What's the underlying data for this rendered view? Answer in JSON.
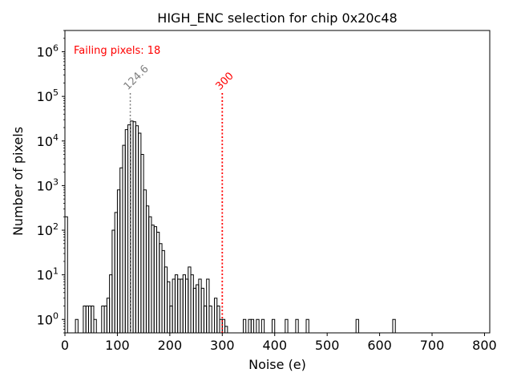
{
  "chart_data": {
    "type": "histogram",
    "title": "HIGH_ENC selection for chip 0x20c48",
    "xlabel": "Noise (e)",
    "ylabel": "Number of pixels",
    "xlim": [
      0,
      810
    ],
    "ylim": [
      0.5,
      3000000
    ],
    "yscale": "log",
    "x_ticks": [
      {
        "value": 0,
        "label": "0"
      },
      {
        "value": 100,
        "label": "100"
      },
      {
        "value": 200,
        "label": "200"
      },
      {
        "value": 300,
        "label": "300"
      },
      {
        "value": 400,
        "label": "400"
      },
      {
        "value": 500,
        "label": "500"
      },
      {
        "value": 600,
        "label": "600"
      },
      {
        "value": 700,
        "label": "700"
      },
      {
        "value": 800,
        "label": "800"
      }
    ],
    "y_ticks": [
      {
        "value": 1,
        "base": "10",
        "exp": "0"
      },
      {
        "value": 10,
        "base": "10",
        "exp": "1"
      },
      {
        "value": 100,
        "base": "10",
        "exp": "2"
      },
      {
        "value": 1000,
        "base": "10",
        "exp": "3"
      },
      {
        "value": 10000,
        "base": "10",
        "exp": "4"
      },
      {
        "value": 100000,
        "base": "10",
        "exp": "5"
      },
      {
        "value": 1000000,
        "base": "10",
        "exp": "6"
      }
    ],
    "annotation": "Failing pixels: 18",
    "annotation_color": "#ff0000",
    "bin_width": 5,
    "bins": [
      [
        0,
        200
      ],
      [
        20,
        1
      ],
      [
        35,
        2
      ],
      [
        40,
        2
      ],
      [
        45,
        2
      ],
      [
        50,
        2
      ],
      [
        55,
        1
      ],
      [
        70,
        2
      ],
      [
        75,
        2
      ],
      [
        80,
        3
      ],
      [
        85,
        10
      ],
      [
        90,
        100
      ],
      [
        95,
        250
      ],
      [
        100,
        800
      ],
      [
        105,
        2500
      ],
      [
        110,
        8000
      ],
      [
        115,
        18000
      ],
      [
        120,
        23000
      ],
      [
        125,
        28000
      ],
      [
        130,
        27000
      ],
      [
        135,
        22000
      ],
      [
        140,
        15000
      ],
      [
        145,
        5000
      ],
      [
        150,
        800
      ],
      [
        155,
        350
      ],
      [
        160,
        200
      ],
      [
        165,
        130
      ],
      [
        170,
        120
      ],
      [
        175,
        90
      ],
      [
        180,
        50
      ],
      [
        185,
        35
      ],
      [
        190,
        15
      ],
      [
        195,
        7
      ],
      [
        200,
        2
      ],
      [
        205,
        8
      ],
      [
        210,
        10
      ],
      [
        215,
        8
      ],
      [
        220,
        8
      ],
      [
        225,
        10
      ],
      [
        230,
        8
      ],
      [
        235,
        15
      ],
      [
        240,
        10
      ],
      [
        245,
        5
      ],
      [
        250,
        6
      ],
      [
        255,
        8
      ],
      [
        260,
        5
      ],
      [
        265,
        2
      ],
      [
        270,
        8
      ],
      [
        275,
        2
      ],
      [
        285,
        3
      ],
      [
        290,
        2
      ],
      [
        295,
        1
      ],
      [
        300,
        1
      ],
      [
        305,
        0.7
      ],
      [
        340,
        1
      ],
      [
        350,
        1
      ],
      [
        355,
        1
      ],
      [
        365,
        1
      ],
      [
        375,
        1
      ],
      [
        395,
        1
      ],
      [
        420,
        1
      ],
      [
        440,
        1
      ],
      [
        460,
        1
      ],
      [
        555,
        1
      ],
      [
        625,
        1
      ]
    ],
    "vlines": [
      {
        "value": 124.6,
        "label": "124.6",
        "color": "#808080"
      },
      {
        "value": 300,
        "label": "300",
        "color": "#ff0000"
      }
    ],
    "grid": false,
    "legend": "none"
  }
}
